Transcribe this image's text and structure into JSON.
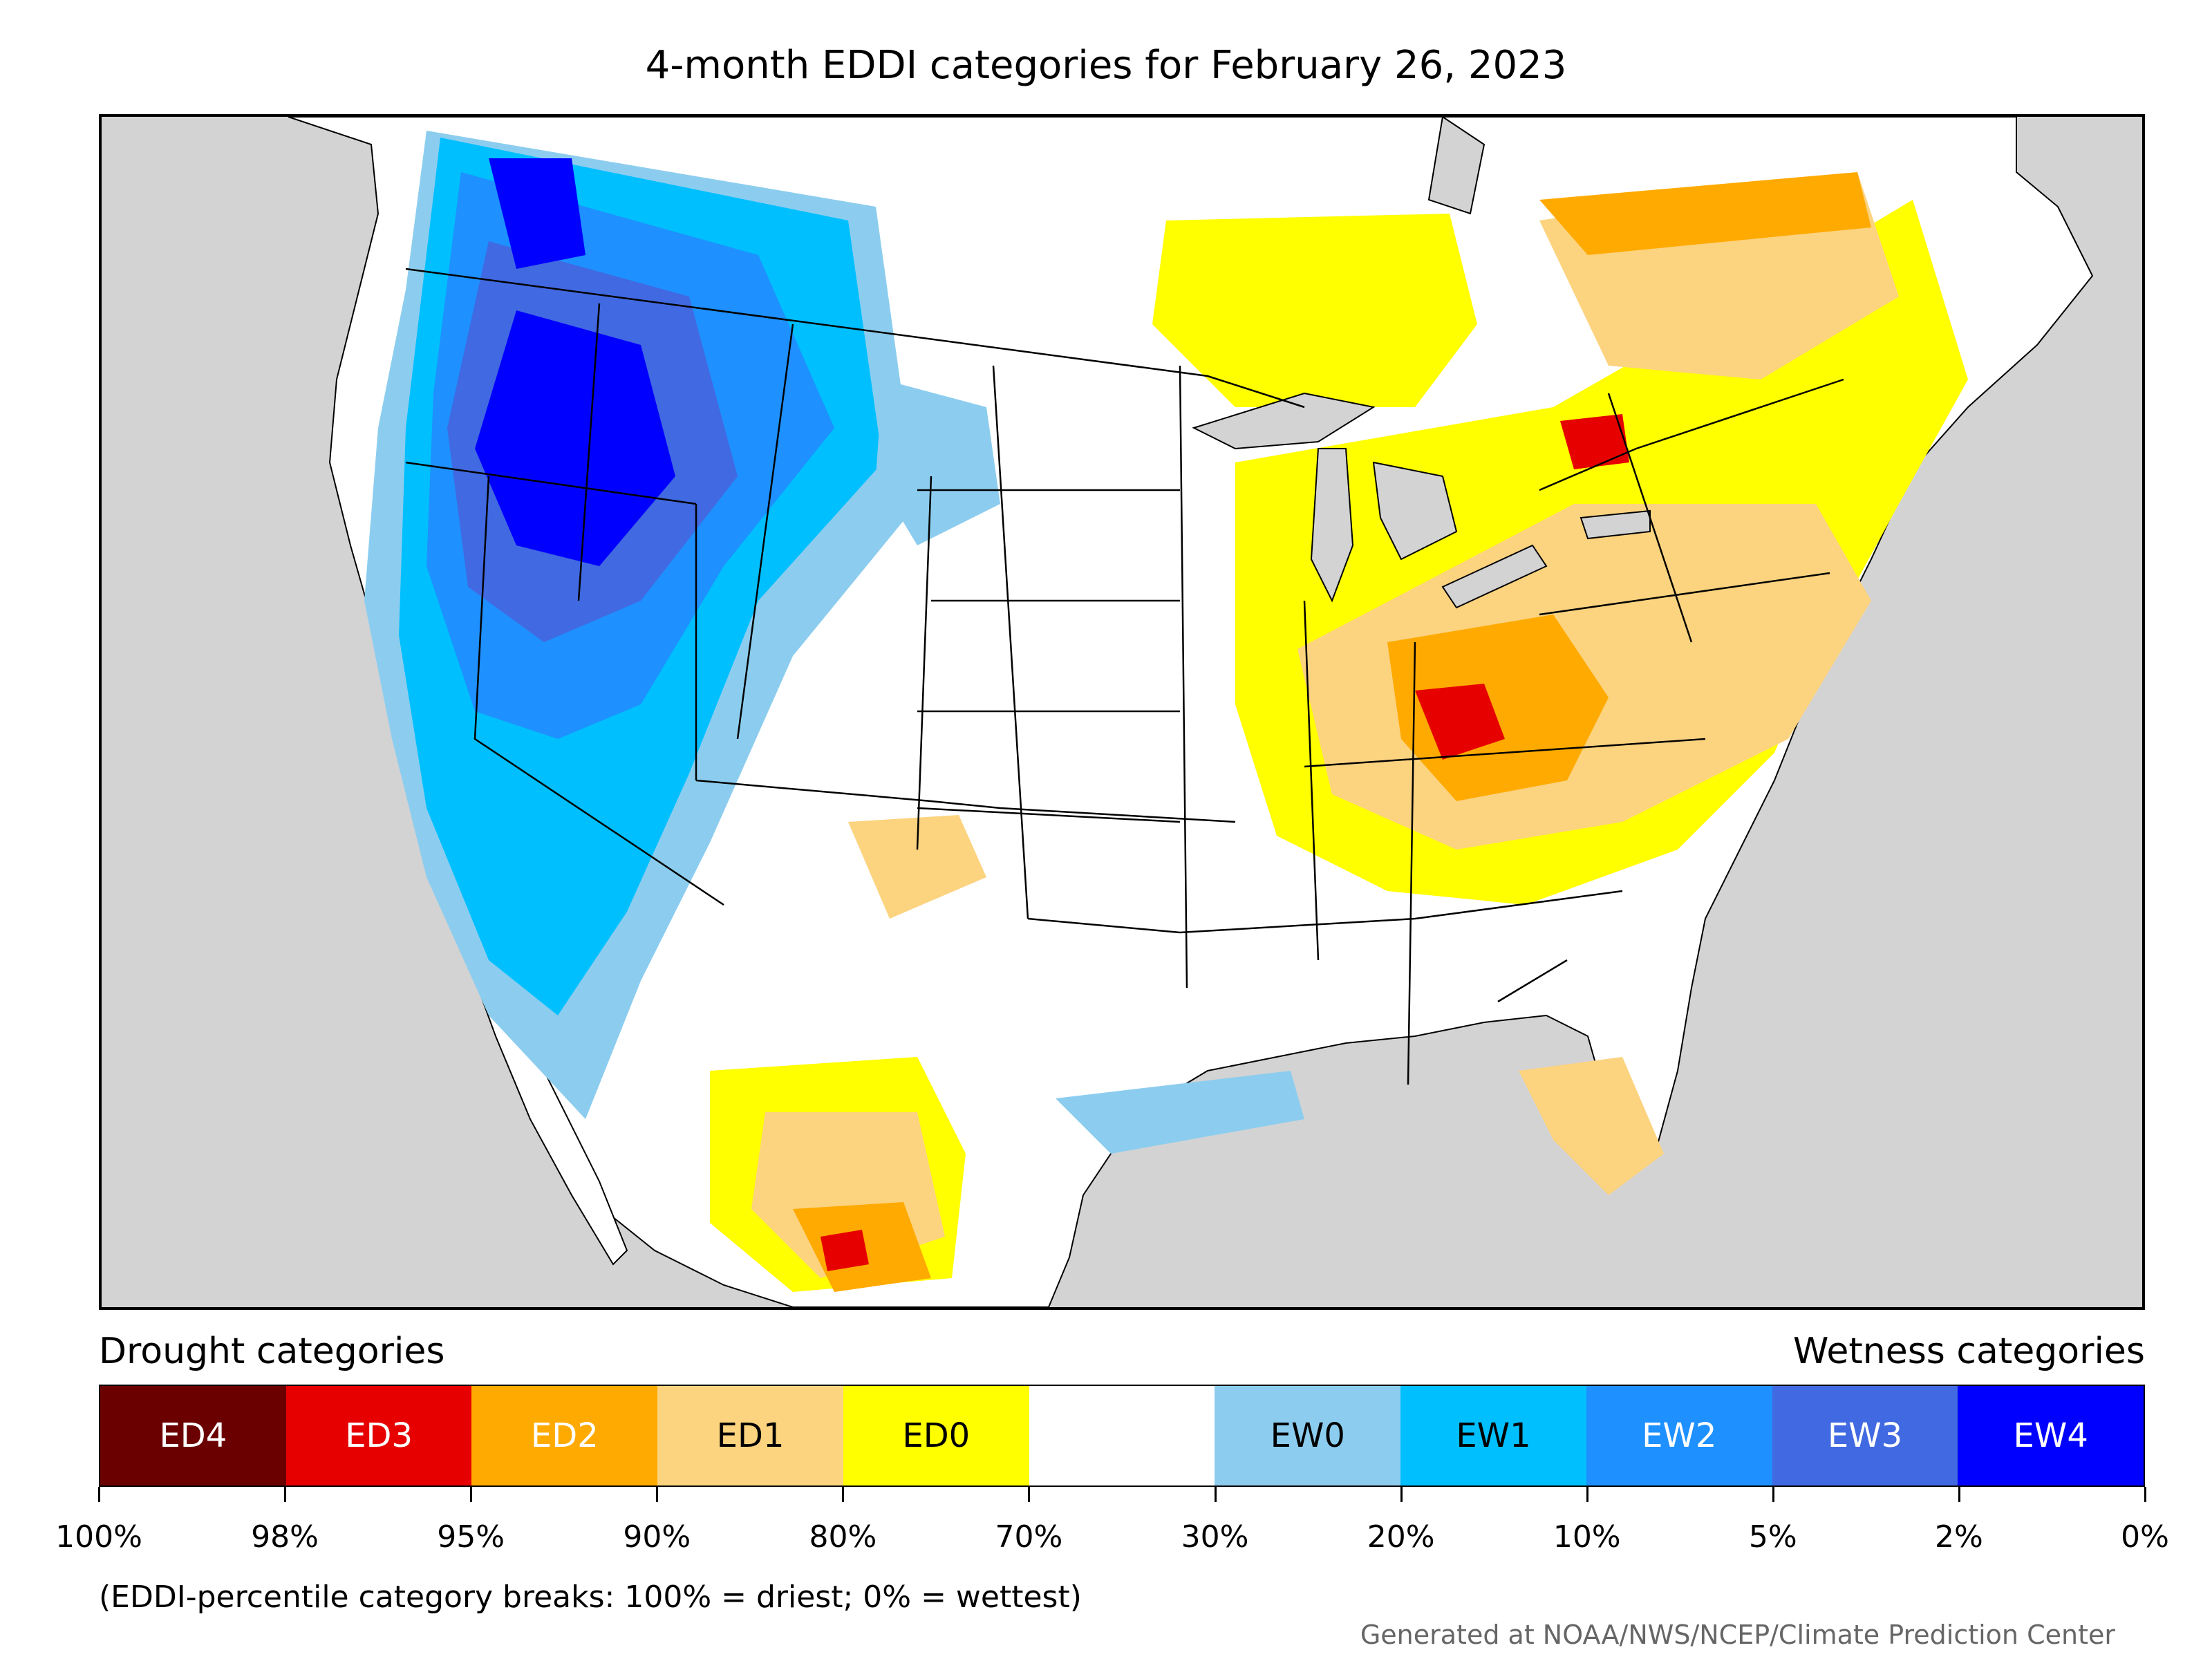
{
  "title": "4-month EDDI categories for February 26, 2023",
  "legend": {
    "drought_heading": "Drought categories",
    "wetness_heading": "Wetness categories",
    "categories": [
      {
        "label": "ED4",
        "color": "#6b0000",
        "text_color": "#ffffff"
      },
      {
        "label": "ED3",
        "color": "#e60000",
        "text_color": "#ffffff"
      },
      {
        "label": "ED2",
        "color": "#ffaa00",
        "text_color": "#ffffff"
      },
      {
        "label": "ED1",
        "color": "#fcd37f",
        "text_color": "#000000"
      },
      {
        "label": "ED0",
        "color": "#ffff00",
        "text_color": "#000000"
      },
      {
        "label": "",
        "color": "#ffffff",
        "text_color": "#000000"
      },
      {
        "label": "EW0",
        "color": "#8ccdef",
        "text_color": "#000000"
      },
      {
        "label": "EW1",
        "color": "#00bfff",
        "text_color": "#000000"
      },
      {
        "label": "EW2",
        "color": "#1e90ff",
        "text_color": "#ffffff"
      },
      {
        "label": "EW3",
        "color": "#4169e1",
        "text_color": "#ffffff"
      },
      {
        "label": "EW4",
        "color": "#0000ff",
        "text_color": "#ffffff"
      }
    ],
    "breaks": [
      "100%",
      "98%",
      "95%",
      "90%",
      "80%",
      "70%",
      "30%",
      "20%",
      "10%",
      "5%",
      "2%",
      "0%"
    ],
    "note": "(EDDI-percentile category breaks: 100% = driest; 0% = wettest)"
  },
  "credit": "Generated at NOAA/NWS/NCEP/Climate Prediction Center",
  "map": {
    "ocean_color": "#d3d3d3",
    "land_color": "#ffffff",
    "boundary_color": "#000000"
  }
}
